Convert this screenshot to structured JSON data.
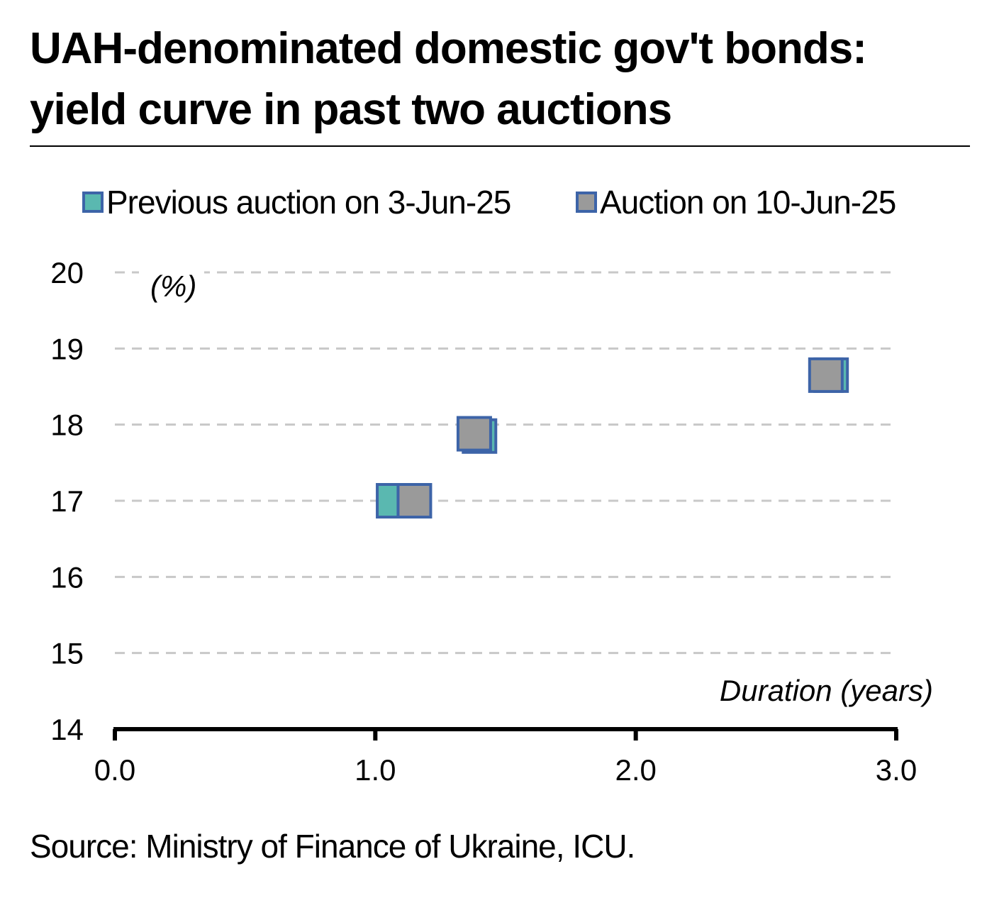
{
  "title": {
    "line1": "UAH-denominated domestic gov't bonds:",
    "line2": "yield curve in past two auctions"
  },
  "legend": {
    "previous": "Previous auction on 3-Jun-25",
    "current": "Auction on 10-Jun-25"
  },
  "source": "Source: Ministry of Finance of Ukraine, ICU.",
  "colors": {
    "previous_fill": "#5ab8b0",
    "current_fill": "#9a9a9a",
    "marker_border": "#3d64a8",
    "grid": "#c8c8c8"
  },
  "chart_data": {
    "type": "scatter",
    "ylabel": "(%)",
    "xlabel": "Duration (years)",
    "xlim": [
      0,
      3
    ],
    "ylim": [
      14,
      20
    ],
    "x_ticks": [
      "0.0",
      "1.0",
      "2.0",
      "3.0"
    ],
    "y_ticks": [
      "14",
      "15",
      "16",
      "17",
      "18",
      "19",
      "20"
    ],
    "grid": "horizontal dashed",
    "legend_position": "top",
    "series": [
      {
        "name": "Previous auction on 3-Jun-25",
        "points": [
          {
            "x": 1.07,
            "y": 17.0
          },
          {
            "x": 1.4,
            "y": 17.85
          },
          {
            "x": 2.75,
            "y": 18.65
          }
        ]
      },
      {
        "name": "Auction on 10-Jun-25",
        "points": [
          {
            "x": 1.15,
            "y": 17.0
          },
          {
            "x": 1.38,
            "y": 17.88
          },
          {
            "x": 2.73,
            "y": 18.65
          }
        ]
      }
    ]
  }
}
